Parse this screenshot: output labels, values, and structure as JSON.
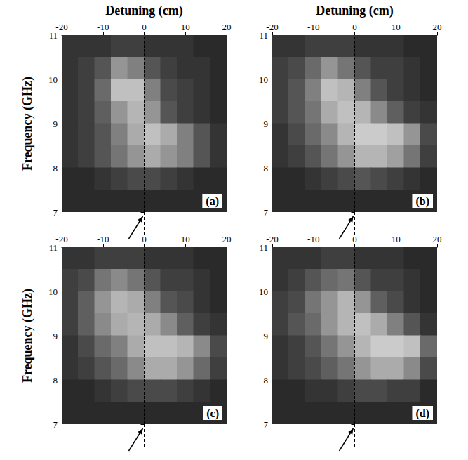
{
  "chart_data": [
    {
      "type": "heatmap",
      "title": "(a)",
      "x_label": "Detuning (cm)",
      "y_label": "Frequency (GHz)",
      "x": [
        -18,
        -14,
        -10,
        -6,
        -2,
        2,
        6,
        10,
        14,
        18
      ],
      "y": [
        10.75,
        10.25,
        9.75,
        9.25,
        8.75,
        8.25,
        7.75,
        7.25
      ],
      "z": [
        [
          0.15,
          0.15,
          0.15,
          0.2,
          0.2,
          0.15,
          0.15,
          0.15,
          0.1,
          0.1
        ],
        [
          0.15,
          0.2,
          0.3,
          0.6,
          0.5,
          0.3,
          0.2,
          0.15,
          0.15,
          0.1
        ],
        [
          0.15,
          0.2,
          0.4,
          0.8,
          0.8,
          0.5,
          0.25,
          0.2,
          0.15,
          0.1
        ],
        [
          0.15,
          0.2,
          0.35,
          0.6,
          0.75,
          0.6,
          0.3,
          0.2,
          0.15,
          0.1
        ],
        [
          0.15,
          0.2,
          0.3,
          0.5,
          0.7,
          0.8,
          0.7,
          0.5,
          0.3,
          0.15
        ],
        [
          0.15,
          0.2,
          0.3,
          0.45,
          0.6,
          0.7,
          0.6,
          0.5,
          0.3,
          0.15
        ],
        [
          0.1,
          0.1,
          0.15,
          0.2,
          0.25,
          0.25,
          0.2,
          0.15,
          0.1,
          0.1
        ],
        [
          0.1,
          0.1,
          0.1,
          0.1,
          0.1,
          0.1,
          0.1,
          0.1,
          0.1,
          0.1
        ]
      ],
      "zlim": [
        0,
        1
      ],
      "xlim": [
        -20,
        20
      ],
      "xticks": [
        -20,
        -10,
        0,
        10,
        20
      ],
      "ylim": [
        7,
        11
      ],
      "yticks": [
        7,
        8,
        9,
        10,
        11
      ],
      "reference_line": 0
    },
    {
      "type": "heatmap",
      "title": "(b)",
      "x_label": "Detuning (cm)",
      "x": [
        -18,
        -14,
        -10,
        -6,
        -2,
        2,
        6,
        10,
        14,
        18
      ],
      "y": [
        10.75,
        10.25,
        9.75,
        9.25,
        8.75,
        8.25,
        7.75,
        7.25
      ],
      "z": [
        [
          0.15,
          0.15,
          0.2,
          0.2,
          0.2,
          0.15,
          0.15,
          0.15,
          0.1,
          0.1
        ],
        [
          0.2,
          0.25,
          0.4,
          0.6,
          0.45,
          0.3,
          0.2,
          0.2,
          0.15,
          0.1
        ],
        [
          0.2,
          0.3,
          0.5,
          0.8,
          0.75,
          0.5,
          0.3,
          0.2,
          0.15,
          0.1
        ],
        [
          0.2,
          0.3,
          0.45,
          0.7,
          0.8,
          0.75,
          0.55,
          0.35,
          0.2,
          0.15
        ],
        [
          0.15,
          0.25,
          0.4,
          0.55,
          0.75,
          0.85,
          0.85,
          0.8,
          0.6,
          0.25
        ],
        [
          0.15,
          0.2,
          0.3,
          0.45,
          0.6,
          0.75,
          0.75,
          0.65,
          0.45,
          0.2
        ],
        [
          0.1,
          0.1,
          0.15,
          0.2,
          0.25,
          0.3,
          0.25,
          0.2,
          0.15,
          0.1
        ],
        [
          0.1,
          0.1,
          0.1,
          0.1,
          0.1,
          0.1,
          0.1,
          0.1,
          0.1,
          0.1
        ]
      ],
      "zlim": [
        0,
        1
      ],
      "xlim": [
        -20,
        20
      ],
      "xticks": [
        -20,
        -10,
        0,
        10,
        20
      ],
      "ylim": [
        7,
        11
      ],
      "yticks": [
        7,
        8,
        9,
        10,
        11
      ],
      "reference_line": 0
    },
    {
      "type": "heatmap",
      "title": "(c)",
      "y_label": "Frequency (GHz)",
      "x": [
        -18,
        -14,
        -10,
        -6,
        -2,
        2,
        6,
        10,
        14,
        18
      ],
      "y": [
        10.75,
        10.25,
        9.75,
        9.25,
        8.75,
        8.25,
        7.75,
        7.25
      ],
      "z": [
        [
          0.15,
          0.15,
          0.2,
          0.2,
          0.2,
          0.15,
          0.15,
          0.15,
          0.1,
          0.1
        ],
        [
          0.2,
          0.25,
          0.45,
          0.55,
          0.45,
          0.3,
          0.2,
          0.2,
          0.15,
          0.1
        ],
        [
          0.2,
          0.35,
          0.6,
          0.75,
          0.7,
          0.5,
          0.3,
          0.25,
          0.15,
          0.1
        ],
        [
          0.2,
          0.35,
          0.55,
          0.7,
          0.75,
          0.7,
          0.55,
          0.35,
          0.2,
          0.15
        ],
        [
          0.15,
          0.25,
          0.4,
          0.5,
          0.7,
          0.8,
          0.8,
          0.75,
          0.55,
          0.25
        ],
        [
          0.15,
          0.2,
          0.3,
          0.4,
          0.55,
          0.7,
          0.7,
          0.6,
          0.4,
          0.2
        ],
        [
          0.1,
          0.1,
          0.15,
          0.2,
          0.25,
          0.25,
          0.25,
          0.2,
          0.15,
          0.1
        ],
        [
          0.1,
          0.1,
          0.1,
          0.1,
          0.1,
          0.1,
          0.1,
          0.1,
          0.1,
          0.1
        ]
      ],
      "zlim": [
        0,
        1
      ],
      "xlim": [
        -20,
        20
      ],
      "xticks": [
        -20,
        -10,
        0,
        10,
        20
      ],
      "ylim": [
        7,
        11
      ],
      "yticks": [
        7,
        8,
        9,
        10,
        11
      ],
      "reference_line": 0
    },
    {
      "type": "heatmap",
      "title": "(d)",
      "x": [
        -18,
        -14,
        -10,
        -6,
        -2,
        2,
        6,
        10,
        14,
        18
      ],
      "y": [
        10.75,
        10.25,
        9.75,
        9.25,
        8.75,
        8.25,
        7.75,
        7.25
      ],
      "z": [
        [
          0.15,
          0.15,
          0.15,
          0.2,
          0.2,
          0.15,
          0.15,
          0.15,
          0.1,
          0.1
        ],
        [
          0.15,
          0.2,
          0.3,
          0.4,
          0.45,
          0.3,
          0.2,
          0.2,
          0.15,
          0.1
        ],
        [
          0.2,
          0.25,
          0.45,
          0.6,
          0.75,
          0.6,
          0.35,
          0.25,
          0.15,
          0.1
        ],
        [
          0.2,
          0.3,
          0.4,
          0.6,
          0.75,
          0.8,
          0.7,
          0.5,
          0.3,
          0.15
        ],
        [
          0.15,
          0.2,
          0.3,
          0.45,
          0.6,
          0.75,
          0.85,
          0.85,
          0.8,
          0.4
        ],
        [
          0.15,
          0.2,
          0.25,
          0.35,
          0.45,
          0.6,
          0.7,
          0.7,
          0.55,
          0.25
        ],
        [
          0.1,
          0.1,
          0.15,
          0.15,
          0.2,
          0.25,
          0.25,
          0.2,
          0.2,
          0.1
        ],
        [
          0.1,
          0.1,
          0.1,
          0.1,
          0.1,
          0.1,
          0.1,
          0.1,
          0.1,
          0.1
        ]
      ],
      "zlim": [
        0,
        1
      ],
      "xlim": [
        -20,
        20
      ],
      "xticks": [
        -20,
        -10,
        0,
        10,
        20
      ],
      "ylim": [
        7,
        11
      ],
      "yticks": [
        7,
        8,
        9,
        10,
        11
      ],
      "reference_line": 0
    }
  ]
}
